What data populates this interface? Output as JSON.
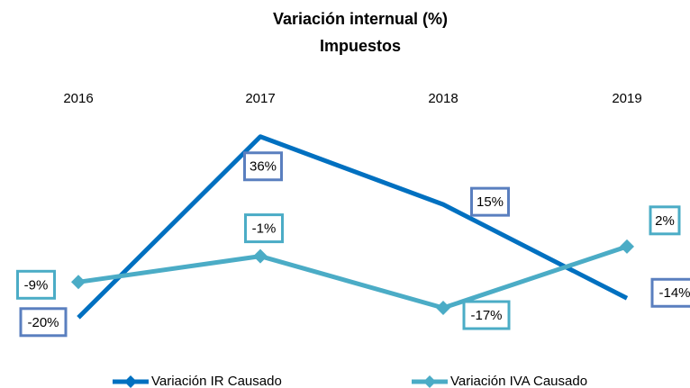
{
  "chart_data": {
    "type": "line",
    "title": "Variación internual (%)",
    "subtitle": "Impuestos",
    "categories": [
      "2016",
      "2017",
      "2018",
      "2019"
    ],
    "series": [
      {
        "name": "Variación IR Causado",
        "color": "#0070c0",
        "values": [
          -20,
          36,
          15,
          -14
        ],
        "value_labels": [
          "-20%",
          "36%",
          "15%",
          "-14%"
        ]
      },
      {
        "name": "Variación IVA Causado",
        "color": "#4bacc6",
        "values": [
          -9,
          -1,
          -17,
          2
        ],
        "value_labels": [
          "-9%",
          "-1%",
          "-17%",
          "2%"
        ]
      }
    ],
    "grid": false
  }
}
